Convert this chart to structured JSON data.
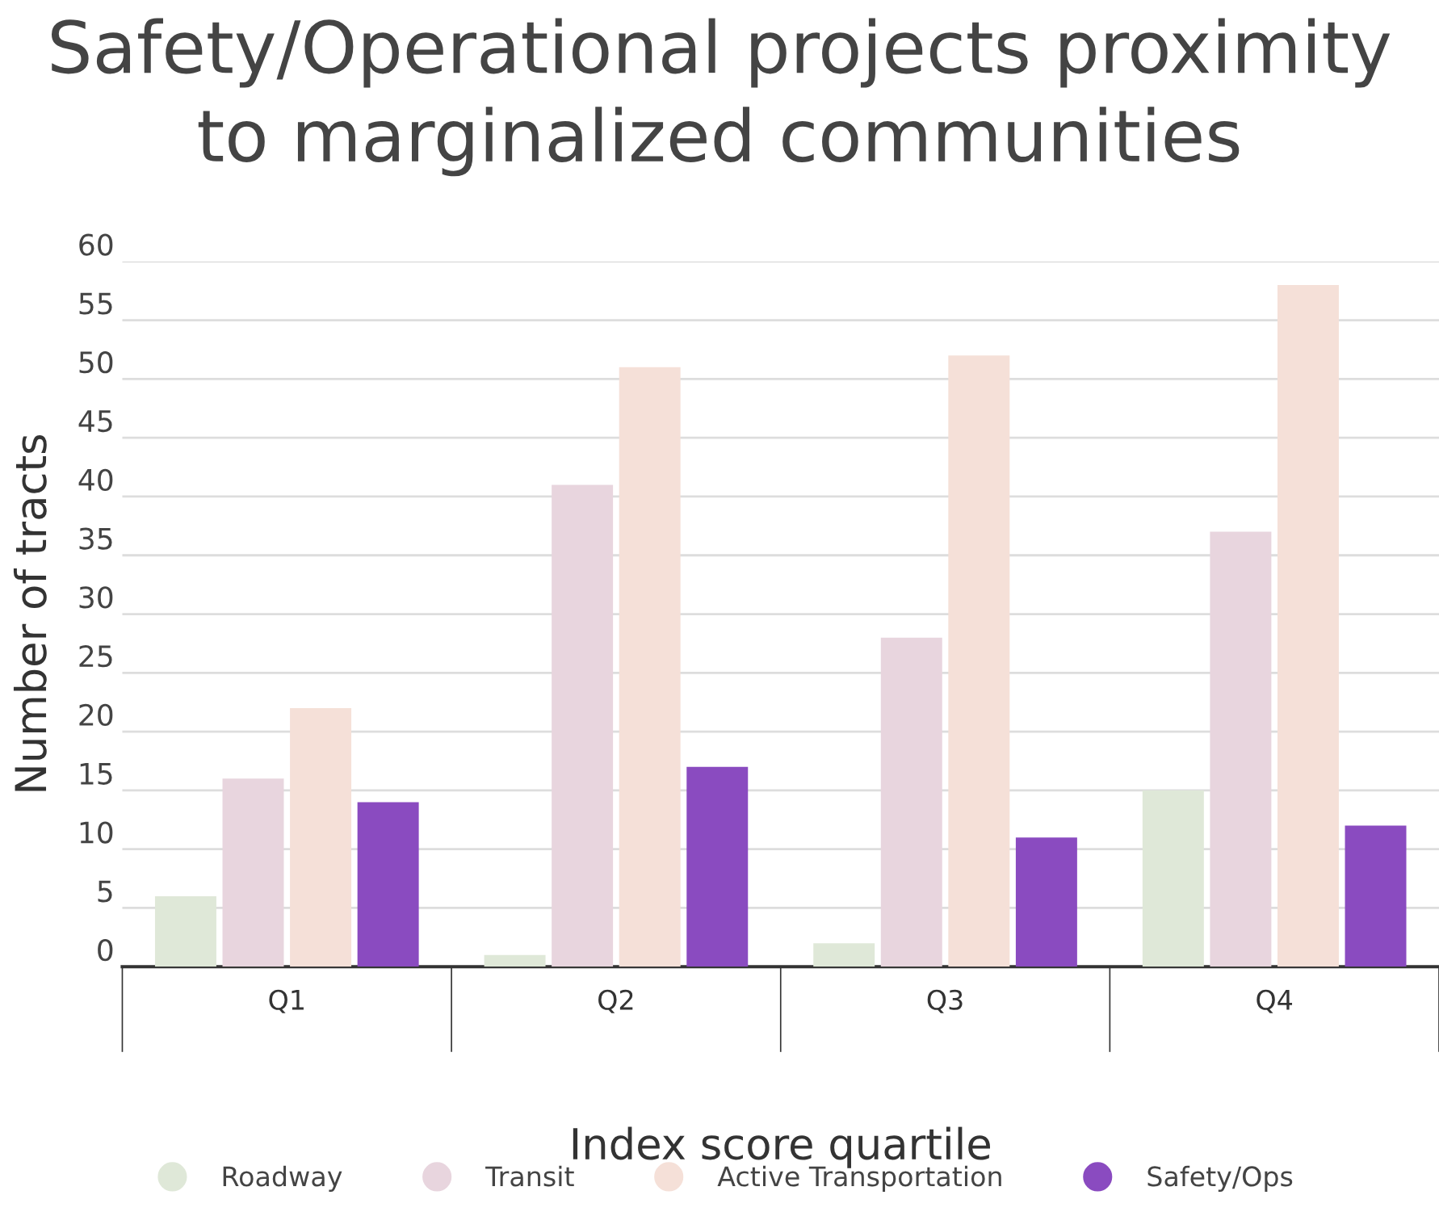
{
  "chart_data": {
    "type": "bar",
    "title": "Safety/Operational projects proximity to marginalized communities",
    "xlabel": "Index score quartile",
    "ylabel": "Number of tracts",
    "categories": [
      "Q1",
      "Q2",
      "Q3",
      "Q4"
    ],
    "series": [
      {
        "name": "Roadway",
        "color": "#dfe8d8",
        "values": [
          6,
          1,
          2,
          15
        ]
      },
      {
        "name": "Transit",
        "color": "#e8d5de",
        "values": [
          16,
          41,
          28,
          37
        ]
      },
      {
        "name": "Active Transportation",
        "color": "#f5e0d8",
        "values": [
          22,
          51,
          52,
          58
        ]
      },
      {
        "name": "Safety/Ops",
        "color": "#8a4bc0",
        "values": [
          14,
          17,
          11,
          12
        ]
      }
    ],
    "ylim": [
      0,
      60
    ],
    "yticks": [
      0,
      5,
      10,
      15,
      20,
      25,
      30,
      35,
      40,
      45,
      50,
      55,
      60
    ],
    "grid": "y",
    "legend": "bottom"
  }
}
